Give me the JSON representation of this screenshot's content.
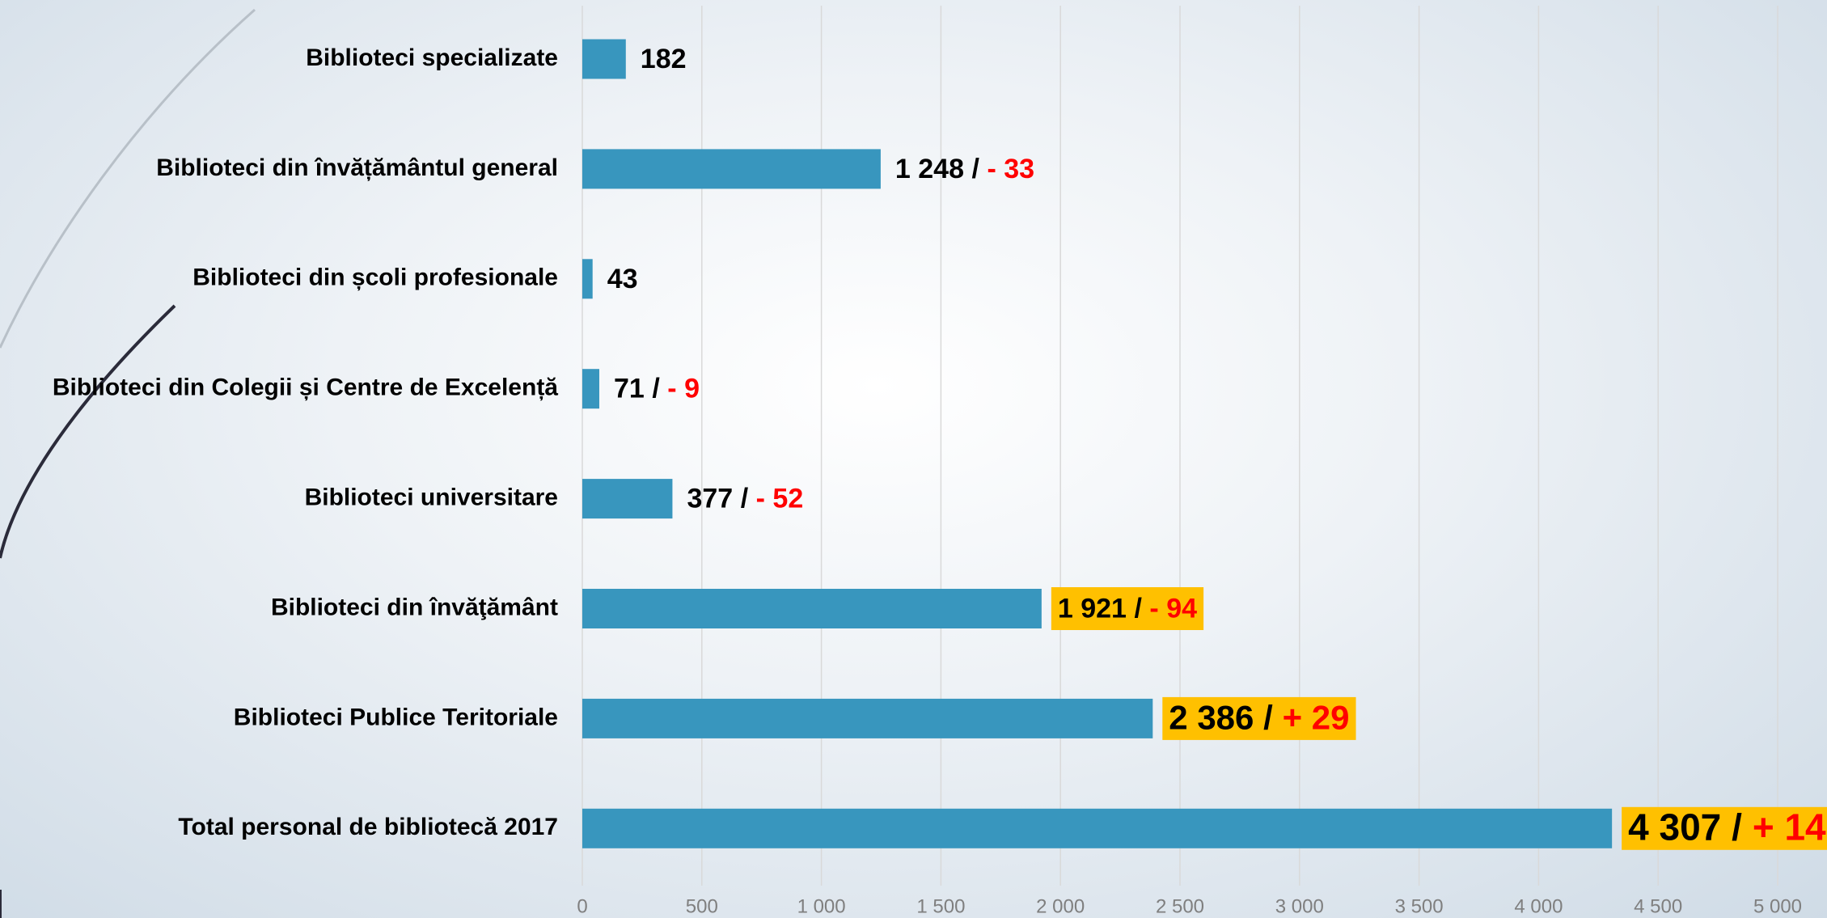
{
  "chart_data": {
    "type": "bar",
    "orientation": "horizontal",
    "categories": [
      "Biblioteci specializate",
      "Biblioteci din învățământul general",
      "Biblioteci din școli profesionale",
      "Biblioteci din Colegii și Centre de Excelență",
      "Biblioteci universitare",
      "Biblioteci din învăţământ",
      "Biblioteci Publice Teritoriale",
      "Total personal de bibliotecă 2017"
    ],
    "values": [
      182,
      1248,
      43,
      71,
      377,
      1921,
      2386,
      4307
    ],
    "value_labels": [
      "182",
      "1 248",
      "43",
      "71",
      "377",
      "1 921",
      "2 386",
      "4 307"
    ],
    "separator": "/",
    "changes": [
      null,
      -33,
      null,
      -9,
      -52,
      -94,
      29,
      14
    ],
    "change_labels": [
      null,
      "- 33",
      null,
      "- 9",
      "- 52",
      "- 94",
      "+ 29",
      "+ 14"
    ],
    "highlight": [
      false,
      false,
      false,
      false,
      false,
      true,
      true,
      true
    ],
    "color": "#3896be",
    "change_color": "#ff0000",
    "highlight_color": "#ffc000",
    "xlim": [
      0,
      5000
    ],
    "xticks": [
      0,
      500,
      {
        "value": 1000,
        "label": "1 000"
      },
      {
        "value": 1500,
        "label": "1 500"
      },
      {
        "value": 2000,
        "label": "2 000"
      },
      {
        "value": 2500,
        "label": "2 500"
      },
      {
        "value": 3000,
        "label": "3 000"
      },
      {
        "value": 3500,
        "label": "3 500"
      },
      {
        "value": 4000,
        "label": "4 000"
      },
      {
        "value": 4500,
        "label": "4 500"
      },
      {
        "value": 5000,
        "label": "5 000"
      }
    ],
    "grid": true
  }
}
